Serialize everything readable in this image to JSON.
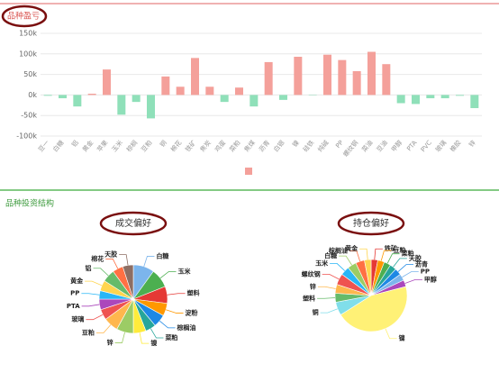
{
  "chart_data": [
    {
      "type": "bar",
      "title": "品种盈亏",
      "categories": [
        "豆一",
        "白糖",
        "铝",
        "黄金",
        "苹果",
        "玉米",
        "棕榈",
        "豆粕",
        "铜",
        "棉花",
        "铁矿",
        "焦炭",
        "鸡蛋",
        "菜粕",
        "焦煤",
        "沥青",
        "白银",
        "镍",
        "硅铁",
        "纯碱",
        "PP",
        "螺纹钢",
        "菜油",
        "豆油",
        "甲醇",
        "PTA",
        "PVC",
        "玻璃",
        "橡胶",
        "锌"
      ],
      "values": [
        -2000,
        -8000,
        -28000,
        3000,
        62000,
        -48000,
        -17000,
        -57000,
        45000,
        20000,
        90000,
        20000,
        -17000,
        18000,
        -28000,
        80000,
        -12000,
        93000,
        -1000,
        98000,
        85000,
        58000,
        105000,
        75000,
        -20000,
        -22000,
        -8000,
        -8000,
        -2000,
        -32000
      ],
      "positive_color": "#f4a09a",
      "negative_color": "#8fe0b9",
      "ylim": [
        -100000,
        150000
      ],
      "yticks": [
        {
          "value": -100000,
          "label": "-100k"
        },
        {
          "value": -50000,
          "label": "-50k"
        },
        {
          "value": 0,
          "label": "0k"
        },
        {
          "value": 50000,
          "label": "50k"
        },
        {
          "value": 100000,
          "label": "100k"
        },
        {
          "value": 150000,
          "label": "150k"
        }
      ],
      "grid": true
    },
    {
      "type": "pie",
      "title": "成交偏好",
      "categories": [
        "白糖",
        "玉米",
        "塑料",
        "淀粉",
        "棕榈油",
        "菜粕",
        "镍",
        "锌",
        "豆粕",
        "玻璃",
        "PTA",
        "PP",
        "黄金",
        "铝",
        "棉花",
        "天胶"
      ],
      "values": [
        10,
        9,
        8,
        6,
        6,
        5,
        6,
        8,
        7,
        5,
        5,
        4,
        5,
        6,
        5,
        5
      ],
      "colors": [
        "#7cb5ec",
        "#4caf50",
        "#e53935",
        "#ff9800",
        "#1e88e5",
        "#26a69a",
        "#ffeb3b",
        "#9ccc65",
        "#ffb74d",
        "#ef5350",
        "#ab47bc",
        "#29b6f6",
        "#ffd54f",
        "#66bb6a",
        "#ff7043",
        "#8d6e63"
      ]
    },
    {
      "type": "pie",
      "title": "持仓偏好",
      "categories": [
        "铁矿",
        "豆粕",
        "菜粕",
        "天胶",
        "沥青",
        "PP",
        "甲醇",
        "镍",
        "铜",
        "塑料",
        "锌",
        "螺纹钢",
        "玉米",
        "白糖",
        "棕榈油",
        "黄金"
      ],
      "values": [
        3,
        3,
        3,
        3,
        3,
        3,
        3,
        45,
        6,
        4,
        4,
        5,
        4,
        4,
        4,
        3
      ],
      "colors": [
        "#e53935",
        "#ff9800",
        "#4caf50",
        "#26a69a",
        "#1e88e5",
        "#7cb5ec",
        "#ab47bc",
        "#fff176",
        "#80deea",
        "#66bb6a",
        "#ffb74d",
        "#ef5350",
        "#29b6f6",
        "#9ccc65",
        "#ff7043",
        "#ffd54f"
      ]
    }
  ],
  "section_title": "品种投资结构"
}
